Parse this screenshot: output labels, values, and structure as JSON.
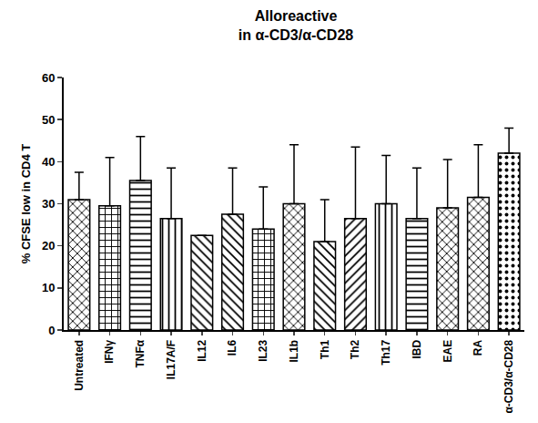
{
  "chart_data": {
    "type": "bar",
    "title": "Alloreactive\nin α-CD3/α-CD28",
    "y_label": "% CFSE low in CD4 T",
    "categories": [
      "Untreated",
      "IFNγ",
      "TNFα",
      "IL17A/F",
      "IL12",
      "IL6",
      "IL23",
      "IL1b",
      "Th1",
      "Th2",
      "Th17",
      "IBD",
      "EAE",
      "RA",
      "α-CD3/α-CD28"
    ],
    "values": [
      31,
      29.5,
      35.5,
      26.5,
      22.5,
      27.5,
      24,
      30,
      21,
      26.5,
      30,
      26.5,
      29,
      31.5,
      42
    ],
    "errors": [
      6.5,
      11.5,
      10.5,
      12,
      0,
      11,
      10,
      14,
      10,
      17,
      11.5,
      12,
      11.5,
      12.5,
      6
    ],
    "color": "#ffffff",
    "ylim": [
      0,
      60
    ],
    "yticks": [
      0,
      10,
      20,
      30,
      40,
      50,
      60
    ],
    "grid": false
  }
}
